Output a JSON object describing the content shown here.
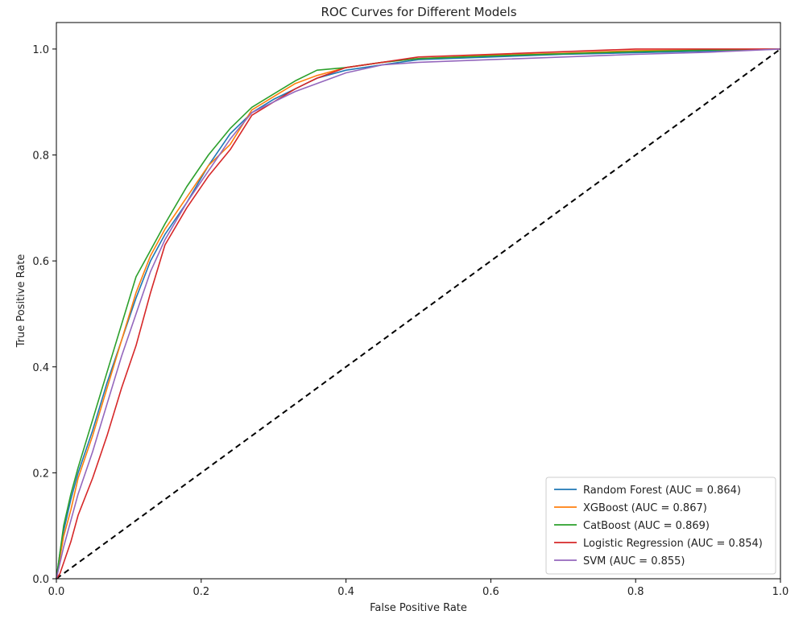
{
  "chart_data": {
    "type": "line",
    "title": "ROC Curves for Different Models",
    "xlabel": "False Positive Rate",
    "ylabel": "True Positive Rate",
    "xlim": [
      0.0,
      1.0
    ],
    "ylim": [
      0.0,
      1.05
    ],
    "xticks": [
      "0.0",
      "0.2",
      "0.4",
      "0.6",
      "0.8",
      "1.0"
    ],
    "yticks": [
      "0.0",
      "0.2",
      "0.4",
      "0.6",
      "0.8",
      "1.0"
    ],
    "grid": false,
    "legend_position": "lower-right",
    "series": [
      {
        "name": "Random Forest (AUC = 0.864)",
        "color": "#1f77b4",
        "x": [
          0,
          0.005,
          0.01,
          0.02,
          0.03,
          0.05,
          0.07,
          0.09,
          0.11,
          0.13,
          0.15,
          0.18,
          0.21,
          0.24,
          0.27,
          0.3,
          0.33,
          0.36,
          0.4,
          0.45,
          0.5,
          0.6,
          0.7,
          0.8,
          0.9,
          1.0
        ],
        "y": [
          0,
          0.05,
          0.09,
          0.15,
          0.2,
          0.28,
          0.37,
          0.45,
          0.53,
          0.6,
          0.65,
          0.71,
          0.78,
          0.84,
          0.88,
          0.905,
          0.925,
          0.945,
          0.96,
          0.97,
          0.98,
          0.985,
          0.99,
          0.993,
          0.996,
          1.0
        ]
      },
      {
        "name": "XGBoost (AUC = 0.867)",
        "color": "#ff7f0e",
        "x": [
          0,
          0.005,
          0.01,
          0.02,
          0.03,
          0.05,
          0.07,
          0.09,
          0.11,
          0.13,
          0.15,
          0.18,
          0.21,
          0.24,
          0.27,
          0.3,
          0.33,
          0.36,
          0.4,
          0.45,
          0.5,
          0.6,
          0.7,
          0.8,
          0.9,
          1.0
        ],
        "y": [
          0,
          0.04,
          0.08,
          0.13,
          0.19,
          0.27,
          0.36,
          0.45,
          0.54,
          0.61,
          0.66,
          0.72,
          0.78,
          0.82,
          0.885,
          0.91,
          0.935,
          0.95,
          0.965,
          0.975,
          0.982,
          0.988,
          0.992,
          0.997,
          0.998,
          1.0
        ]
      },
      {
        "name": "CatBoost (AUC = 0.869)",
        "color": "#2ca02c",
        "x": [
          0,
          0.005,
          0.01,
          0.02,
          0.03,
          0.05,
          0.07,
          0.09,
          0.11,
          0.13,
          0.15,
          0.18,
          0.21,
          0.24,
          0.27,
          0.3,
          0.33,
          0.36,
          0.4,
          0.45,
          0.5,
          0.6,
          0.7,
          0.8,
          0.9,
          1.0
        ],
        "y": [
          0,
          0.05,
          0.1,
          0.16,
          0.21,
          0.3,
          0.39,
          0.48,
          0.57,
          0.62,
          0.67,
          0.74,
          0.8,
          0.85,
          0.89,
          0.915,
          0.94,
          0.96,
          0.965,
          0.975,
          0.982,
          0.987,
          0.991,
          0.995,
          0.998,
          1.0
        ]
      },
      {
        "name": "Logistic Regression (AUC = 0.854)",
        "color": "#d62728",
        "x": [
          0,
          0.005,
          0.01,
          0.02,
          0.03,
          0.05,
          0.07,
          0.09,
          0.11,
          0.13,
          0.15,
          0.18,
          0.21,
          0.24,
          0.27,
          0.3,
          0.33,
          0.36,
          0.4,
          0.45,
          0.5,
          0.6,
          0.7,
          0.8,
          0.9,
          1.0
        ],
        "y": [
          0,
          0.01,
          0.03,
          0.07,
          0.12,
          0.19,
          0.27,
          0.36,
          0.44,
          0.54,
          0.63,
          0.7,
          0.76,
          0.81,
          0.875,
          0.9,
          0.925,
          0.945,
          0.965,
          0.975,
          0.985,
          0.99,
          0.995,
          1.0,
          1.0,
          1.0
        ]
      },
      {
        "name": "SVM (AUC = 0.855)",
        "color": "#9467bd",
        "x": [
          0,
          0.005,
          0.01,
          0.02,
          0.03,
          0.05,
          0.07,
          0.09,
          0.11,
          0.13,
          0.15,
          0.18,
          0.21,
          0.24,
          0.27,
          0.3,
          0.33,
          0.36,
          0.4,
          0.45,
          0.5,
          0.6,
          0.7,
          0.8,
          0.9,
          1.0
        ],
        "y": [
          0,
          0.03,
          0.06,
          0.11,
          0.16,
          0.24,
          0.33,
          0.42,
          0.5,
          0.58,
          0.64,
          0.71,
          0.77,
          0.83,
          0.88,
          0.9,
          0.92,
          0.935,
          0.955,
          0.97,
          0.975,
          0.98,
          0.985,
          0.99,
          0.994,
          1.0
        ]
      }
    ],
    "reference_line": {
      "x": [
        0,
        1
      ],
      "y": [
        0,
        1
      ],
      "style": "dashed",
      "color": "#000000"
    }
  }
}
